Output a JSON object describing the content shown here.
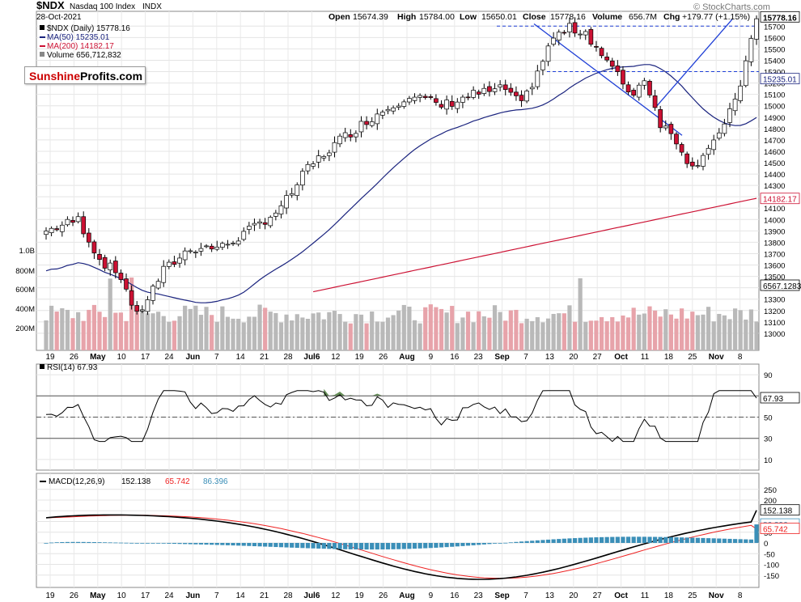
{
  "header": {
    "symbol": "$NDX",
    "name": "Nasdaq 100 Index",
    "exchange": "INDX",
    "date": "28-Oct-2021",
    "open_label": "Open",
    "open": "15674.39",
    "high_label": "High",
    "high": "15784.00",
    "low_label": "Low",
    "low": "15650.01",
    "close_label": "Close",
    "close": "15778.16",
    "volume_label": "Volume",
    "volume": "656.7M",
    "chg_label": "Chg",
    "chg": "+179.77 (+1.15%)",
    "copyright": "© StockCharts.com"
  },
  "legend": {
    "main": "$NDX (Daily) 15778.16",
    "ma50": "MA(50) 15235.01",
    "ma200": "MA(200) 14182.17",
    "volume": "Volume 656,712,832"
  },
  "watermark": {
    "part1": "Sunshine",
    "part2": "Profits.com"
  },
  "colors": {
    "up": "#ffffff",
    "down": "#cc1133",
    "ma50": "#1a237e",
    "ma200": "#cc1133",
    "trend": "#1f3fd6",
    "vol_up": "#b9b9b9",
    "vol_down": "#e7a3aa",
    "rsi_fill": "#4a7a3a",
    "macd_line": "#000000",
    "signal_line": "#ee2222",
    "hist": "#3b8fb8"
  },
  "chart_data": [
    {
      "type": "candlestick",
      "title": "$NDX (Daily)",
      "ylim": [
        12850,
        15830
      ],
      "y_ticks": [
        13000,
        13100,
        13200,
        13300,
        13400,
        13500,
        13600,
        13700,
        13800,
        13900,
        14000,
        14100,
        14200,
        14300,
        14400,
        14500,
        14600,
        14700,
        14800,
        14900,
        15000,
        15100,
        15200,
        15300,
        15400,
        15500,
        15600,
        15700
      ],
      "y_tick_labels": [
        "13000",
        "13100",
        "13200",
        "13300",
        "13400",
        "13500",
        "13600",
        "13700",
        "13800",
        "13900",
        "14000",
        "14100",
        "14200",
        "14300",
        "14400",
        "14500",
        "14600",
        "14700",
        "14800",
        "14900",
        "15000",
        "15100",
        "15200",
        "15300",
        "15400",
        "15500",
        "15600",
        "15700"
      ],
      "x_tick_labels": [
        "19",
        "26",
        "May",
        "10",
        "17",
        "24",
        "Jun",
        "7",
        "14",
        "21",
        "28",
        "Jul6",
        "12",
        "19",
        "26",
        "Aug",
        "9",
        "16",
        "23",
        "Sep",
        "7",
        "13",
        "20",
        "27",
        "Oct",
        "11",
        "18",
        "25",
        "Nov",
        "8"
      ],
      "price_labels": [
        "15778.16",
        "15700",
        "15300",
        "15235.01",
        "14182.17",
        "6567.1283"
      ],
      "horizontal_lines": [
        15700,
        15300
      ],
      "legend": [
        "$NDX (Daily) 15778.16",
        "MA(50) 15235.01",
        "MA(200) 14182.17",
        "Volume 656,712,832"
      ],
      "volume_ticks": [
        "1.0B",
        "800M",
        "600M",
        "400M",
        "200M"
      ],
      "ma50_last": 15235.01,
      "ma200_last": 14182.17,
      "last_close": 15778.16
    },
    {
      "type": "line",
      "title": "RSI(14) 67.93",
      "ylim": [
        0,
        100
      ],
      "y_ticks": [
        90,
        70,
        50,
        30,
        10
      ],
      "y_tick_labels": [
        "90",
        "70",
        "50",
        "30",
        "10"
      ],
      "value_label": "67.93",
      "last": 67.93,
      "levels": [
        70,
        50,
        30
      ]
    },
    {
      "type": "line",
      "title": "MACD(12,26,9)",
      "series_labels": [
        "152.138",
        "65.742",
        "86.396"
      ],
      "ylim": [
        -200,
        280
      ],
      "y_ticks": [
        250,
        200,
        150,
        100,
        50,
        0,
        -50,
        -100,
        -150
      ],
      "y_tick_labels": [
        "250",
        "200",
        "150",
        "100",
        "50",
        "0",
        "-50",
        "-100",
        "-150"
      ],
      "value_labels": [
        "152.138",
        "86.396",
        "65.742"
      ],
      "last_macd": 152.138,
      "last_signal": 65.742,
      "last_hist": 86.396
    }
  ]
}
